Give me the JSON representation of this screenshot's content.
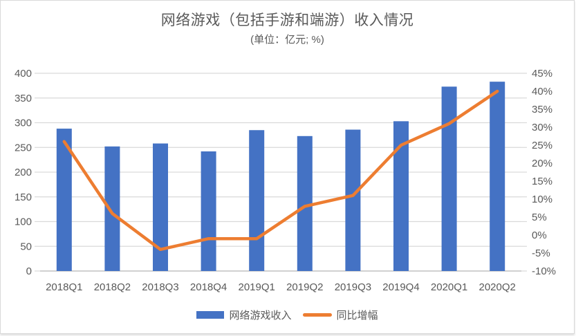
{
  "header": {
    "title": "网络游戏（包括手游和端游）收入情况",
    "subtitle": "(单位：亿元; %)"
  },
  "legend": [
    {
      "label": "网络游戏收入",
      "type": "bar",
      "color": "#4472C4"
    },
    {
      "label": "同比增幅",
      "type": "line",
      "color": "#ED7D31"
    }
  ],
  "colors": {
    "bar": "#4472C4",
    "line": "#ED7D31",
    "gridline": "#D9D9D9",
    "baseline": "#C0C0C0",
    "axis_text": "#595959",
    "title_text": "#595959",
    "card_border": "#D9D9D9"
  },
  "chart_data": {
    "type": "combo",
    "title": "网络游戏（包括手游和端游）收入情况",
    "subtitle": "(单位：亿元; %)",
    "categories": [
      "2018Q1",
      "2018Q2",
      "2018Q3",
      "2018Q4",
      "2019Q1",
      "2019Q2",
      "2019Q3",
      "2019Q4",
      "2020Q1",
      "2020Q2"
    ],
    "series": [
      {
        "name": "网络游戏收入",
        "type": "bar",
        "axis": "left",
        "color": "#4472C4",
        "values": [
          288,
          252,
          258,
          242,
          285,
          273,
          286,
          303,
          373,
          383
        ]
      },
      {
        "name": "同比增幅",
        "type": "line",
        "axis": "right",
        "color": "#ED7D31",
        "values": [
          26,
          6,
          -4,
          -1,
          -1,
          8,
          11,
          25,
          31,
          40
        ]
      }
    ],
    "left_axis": {
      "min": 0,
      "max": 400,
      "step": 50,
      "ticks": [
        "400",
        "350",
        "300",
        "250",
        "200",
        "150",
        "100",
        "50",
        "0"
      ]
    },
    "right_axis": {
      "min": -10,
      "max": 45,
      "step": 5,
      "ticks": [
        "45%",
        "40%",
        "35%",
        "30%",
        "25%",
        "20%",
        "15%",
        "10%",
        "5%",
        "0%",
        "-5%",
        "-10%"
      ]
    },
    "grid": true,
    "legend_position": "bottom"
  }
}
